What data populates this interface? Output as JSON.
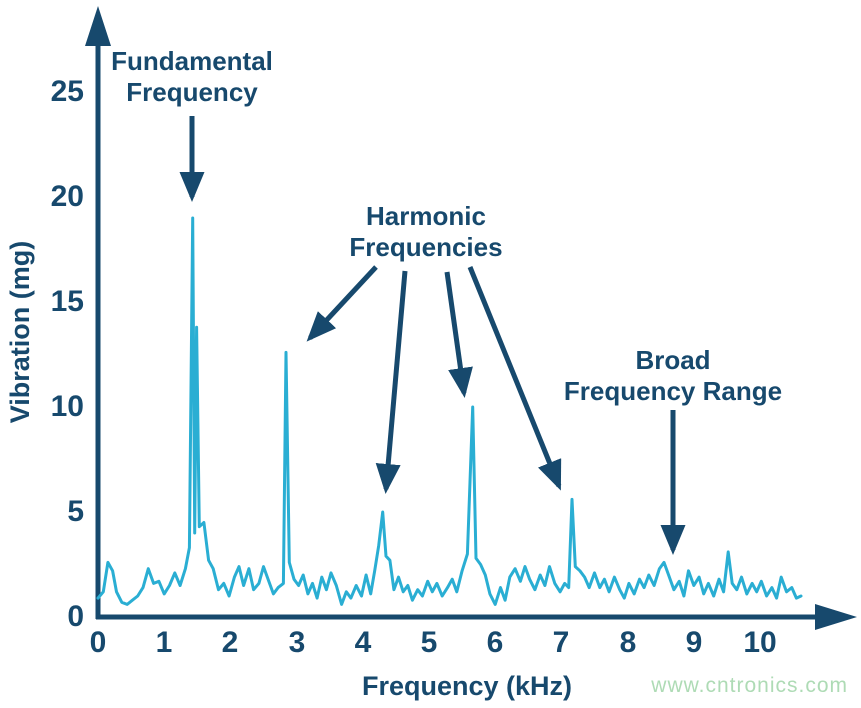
{
  "colors": {
    "navy": "#17496d",
    "cyan": "#2aaed3",
    "watermark_green": "#aedbb5",
    "background": "#ffffff"
  },
  "watermark": "www.cntronics.com",
  "annotations": {
    "fundamental": {
      "line1": "Fundamental",
      "line2": "Frequency"
    },
    "harmonic": {
      "line1": "Harmonic",
      "line2": "Frequencies"
    },
    "broad": {
      "line1": "Broad",
      "line2": "Frequency Range"
    }
  },
  "chart_data": {
    "type": "line",
    "title": "",
    "xlabel": "Frequency (kHz)",
    "ylabel": "Vibration (mg)",
    "xlim": [
      0,
      10.7
    ],
    "ylim": [
      0,
      27
    ],
    "x_ticks": [
      0,
      1,
      2,
      3,
      4,
      5,
      6,
      7,
      8,
      9,
      10
    ],
    "y_ticks": [
      0,
      5,
      10,
      15,
      20,
      25
    ],
    "grid": false,
    "legend": "none",
    "annotated_peaks": {
      "fundamental_khz": 1.43,
      "fundamental_mg": 19.0,
      "harmonics": [
        {
          "khz": 2.84,
          "mg": 12.6
        },
        {
          "khz": 4.3,
          "mg": 5.0
        },
        {
          "khz": 5.66,
          "mg": 10.0
        },
        {
          "khz": 7.16,
          "mg": 5.6
        }
      ],
      "broad_range_khz": 8.6
    },
    "series": [
      {
        "name": "vibration-spectrum",
        "color": "#2aaed3",
        "points": [
          [
            0,
            0.9
          ],
          [
            0.08,
            1.2
          ],
          [
            0.15,
            2.6
          ],
          [
            0.22,
            2.2
          ],
          [
            0.28,
            1.2
          ],
          [
            0.36,
            0.7
          ],
          [
            0.44,
            0.6
          ],
          [
            0.52,
            0.8
          ],
          [
            0.6,
            1.0
          ],
          [
            0.68,
            1.4
          ],
          [
            0.76,
            2.3
          ],
          [
            0.84,
            1.6
          ],
          [
            0.92,
            1.7
          ],
          [
            1.0,
            1.1
          ],
          [
            1.08,
            1.5
          ],
          [
            1.16,
            2.1
          ],
          [
            1.24,
            1.5
          ],
          [
            1.32,
            2.3
          ],
          [
            1.38,
            3.3
          ],
          [
            1.43,
            19.0
          ],
          [
            1.46,
            4.0
          ],
          [
            1.49,
            13.8
          ],
          [
            1.53,
            4.3
          ],
          [
            1.6,
            4.5
          ],
          [
            1.67,
            2.7
          ],
          [
            1.74,
            2.3
          ],
          [
            1.82,
            1.3
          ],
          [
            1.9,
            1.6
          ],
          [
            1.98,
            1.0
          ],
          [
            2.06,
            1.9
          ],
          [
            2.13,
            2.4
          ],
          [
            2.2,
            1.5
          ],
          [
            2.28,
            2.3
          ],
          [
            2.35,
            1.3
          ],
          [
            2.43,
            1.6
          ],
          [
            2.5,
            2.4
          ],
          [
            2.58,
            1.7
          ],
          [
            2.65,
            1.1
          ],
          [
            2.72,
            1.4
          ],
          [
            2.8,
            1.6
          ],
          [
            2.84,
            12.6
          ],
          [
            2.89,
            2.6
          ],
          [
            2.96,
            1.8
          ],
          [
            3.03,
            1.5
          ],
          [
            3.1,
            2.0
          ],
          [
            3.17,
            1.1
          ],
          [
            3.24,
            1.6
          ],
          [
            3.31,
            0.9
          ],
          [
            3.38,
            1.9
          ],
          [
            3.45,
            1.3
          ],
          [
            3.52,
            2.1
          ],
          [
            3.6,
            1.5
          ],
          [
            3.68,
            0.6
          ],
          [
            3.75,
            1.2
          ],
          [
            3.82,
            0.9
          ],
          [
            3.9,
            1.5
          ],
          [
            3.98,
            1.0
          ],
          [
            4.05,
            2.0
          ],
          [
            4.12,
            1.1
          ],
          [
            4.18,
            2.2
          ],
          [
            4.24,
            3.4
          ],
          [
            4.3,
            5.0
          ],
          [
            4.35,
            2.9
          ],
          [
            4.41,
            2.7
          ],
          [
            4.47,
            1.3
          ],
          [
            4.54,
            1.9
          ],
          [
            4.61,
            1.2
          ],
          [
            4.68,
            1.5
          ],
          [
            4.75,
            0.8
          ],
          [
            4.83,
            1.3
          ],
          [
            4.9,
            1.0
          ],
          [
            4.98,
            1.7
          ],
          [
            5.05,
            1.2
          ],
          [
            5.12,
            1.6
          ],
          [
            5.2,
            1.0
          ],
          [
            5.28,
            1.4
          ],
          [
            5.35,
            1.8
          ],
          [
            5.42,
            1.2
          ],
          [
            5.5,
            2.2
          ],
          [
            5.58,
            3.0
          ],
          [
            5.66,
            10.0
          ],
          [
            5.71,
            2.8
          ],
          [
            5.78,
            2.5
          ],
          [
            5.85,
            2.0
          ],
          [
            5.92,
            1.1
          ],
          [
            6.0,
            0.6
          ],
          [
            6.08,
            1.4
          ],
          [
            6.15,
            0.8
          ],
          [
            6.22,
            1.9
          ],
          [
            6.3,
            2.3
          ],
          [
            6.38,
            1.7
          ],
          [
            6.45,
            2.4
          ],
          [
            6.52,
            1.8
          ],
          [
            6.6,
            1.3
          ],
          [
            6.68,
            2.0
          ],
          [
            6.75,
            1.5
          ],
          [
            6.82,
            2.4
          ],
          [
            6.9,
            1.6
          ],
          [
            6.98,
            1.2
          ],
          [
            7.05,
            1.6
          ],
          [
            7.11,
            1.4
          ],
          [
            7.16,
            5.6
          ],
          [
            7.21,
            2.4
          ],
          [
            7.28,
            2.2
          ],
          [
            7.35,
            1.9
          ],
          [
            7.42,
            1.4
          ],
          [
            7.5,
            2.1
          ],
          [
            7.58,
            1.4
          ],
          [
            7.65,
            1.8
          ],
          [
            7.72,
            1.2
          ],
          [
            7.8,
            1.9
          ],
          [
            7.88,
            1.3
          ],
          [
            7.95,
            0.9
          ],
          [
            8.02,
            1.6
          ],
          [
            8.1,
            1.1
          ],
          [
            8.18,
            1.8
          ],
          [
            8.25,
            1.4
          ],
          [
            8.32,
            2.0
          ],
          [
            8.4,
            1.5
          ],
          [
            8.48,
            2.3
          ],
          [
            8.55,
            2.6
          ],
          [
            8.62,
            2.0
          ],
          [
            8.7,
            1.3
          ],
          [
            8.78,
            1.7
          ],
          [
            8.85,
            1.0
          ],
          [
            8.92,
            2.2
          ],
          [
            9.0,
            1.5
          ],
          [
            9.08,
            1.9
          ],
          [
            9.15,
            1.1
          ],
          [
            9.22,
            1.6
          ],
          [
            9.3,
            1.0
          ],
          [
            9.38,
            1.8
          ],
          [
            9.45,
            1.2
          ],
          [
            9.52,
            3.1
          ],
          [
            9.58,
            1.6
          ],
          [
            9.65,
            1.3
          ],
          [
            9.72,
            1.9
          ],
          [
            9.8,
            1.1
          ],
          [
            9.88,
            1.6
          ],
          [
            9.95,
            1.2
          ],
          [
            10.02,
            1.7
          ],
          [
            10.1,
            1.0
          ],
          [
            10.18,
            1.4
          ],
          [
            10.25,
            0.9
          ],
          [
            10.32,
            1.9
          ],
          [
            10.4,
            1.2
          ],
          [
            10.48,
            1.4
          ],
          [
            10.55,
            0.9
          ],
          [
            10.62,
            1.0
          ]
        ]
      }
    ]
  }
}
